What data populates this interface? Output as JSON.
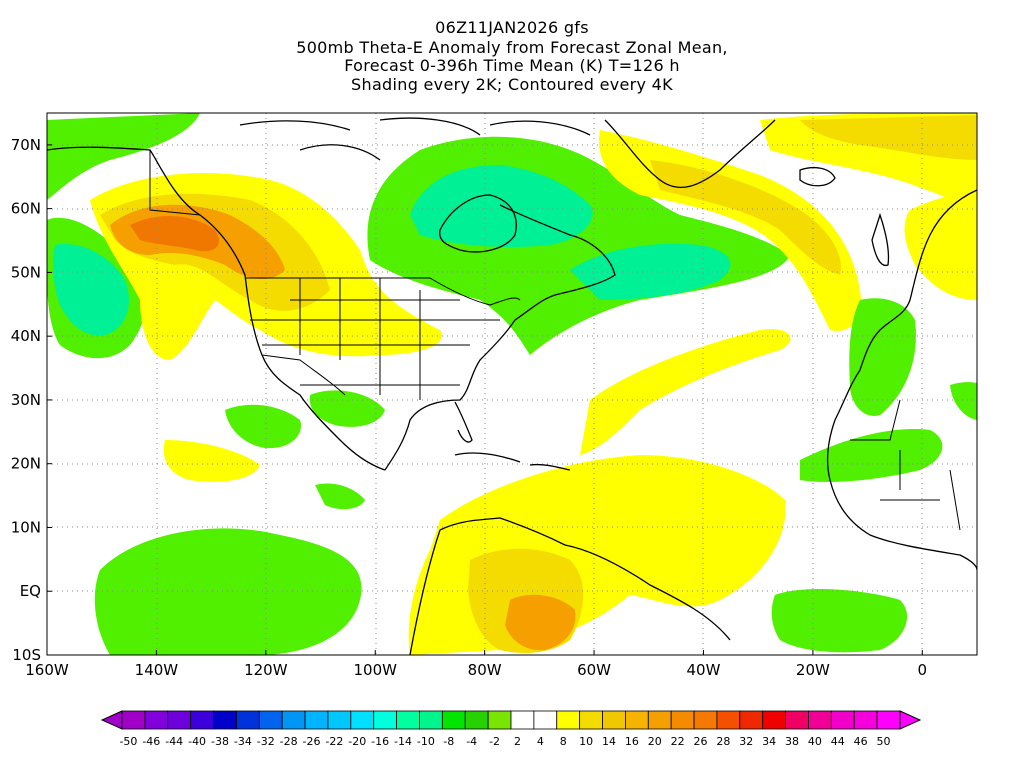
{
  "titles": [
    "06Z11JAN2026 gfs",
    "500mb Theta-E Anomaly from Forecast Zonal Mean,",
    "Forecast 0-396h Time Mean (K) T=126 h",
    "Shading every 2K; Contoured every 4K"
  ],
  "map": {
    "lon_range": [
      -160,
      10
    ],
    "lat_range": [
      -10,
      75
    ],
    "lon_ticks": [
      {
        "lon": -160,
        "label": "160W"
      },
      {
        "lon": -140,
        "label": "140W"
      },
      {
        "lon": -120,
        "label": "120W"
      },
      {
        "lon": -100,
        "label": "100W"
      },
      {
        "lon": -80,
        "label": "80W"
      },
      {
        "lon": -60,
        "label": "60W"
      },
      {
        "lon": -40,
        "label": "40W"
      },
      {
        "lon": -20,
        "label": "20W"
      },
      {
        "lon": 0,
        "label": "0"
      }
    ],
    "lat_ticks": [
      {
        "lat": 70,
        "label": "70N"
      },
      {
        "lat": 60,
        "label": "60N"
      },
      {
        "lat": 50,
        "label": "50N"
      },
      {
        "lat": 40,
        "label": "40N"
      },
      {
        "lat": 30,
        "label": "30N"
      },
      {
        "lat": 20,
        "label": "20N"
      },
      {
        "lat": 10,
        "label": "10N"
      },
      {
        "lat": 0,
        "label": "EQ"
      },
      {
        "lat": -10,
        "label": "10S"
      }
    ]
  },
  "colorbar": {
    "labels": [
      "-50",
      "-46",
      "-44",
      "-40",
      "-38",
      "-34",
      "-32",
      "-28",
      "-26",
      "-22",
      "-20",
      "-16",
      "-14",
      "-10",
      "-8",
      "-4",
      "-2",
      "2",
      "4",
      "8",
      "10",
      "14",
      "16",
      "20",
      "22",
      "26",
      "28",
      "32",
      "34",
      "38",
      "40",
      "44",
      "46",
      "50"
    ],
    "colors": [
      "#a000c8",
      "#8200dc",
      "#6e00dc",
      "#3c00dc",
      "#0000c8",
      "#0032dc",
      "#0064f0",
      "#0096f5",
      "#00b4ff",
      "#00c8ff",
      "#00e1ff",
      "#00ffdc",
      "#00ffa0",
      "#00f58c",
      "#00e600",
      "#28d200",
      "#78e600",
      "#ffffff",
      "#ffffff",
      "#ffff00",
      "#f5dc00",
      "#f0c800",
      "#f5b400",
      "#f5a000",
      "#f58c00",
      "#f57800",
      "#f55000",
      "#f02800",
      "#f00000",
      "#f00064",
      "#f00096",
      "#f000c8",
      "#f500dc",
      "#ff00ff"
    ]
  },
  "fields": {
    "legend_colors": {
      "green": "#50f000",
      "teal": "#00f096",
      "light_green": "#96f500",
      "yellow": "#ffff00",
      "gold": "#f5dc00",
      "orange": "#f5a000",
      "dark_orange": "#f07800"
    }
  }
}
